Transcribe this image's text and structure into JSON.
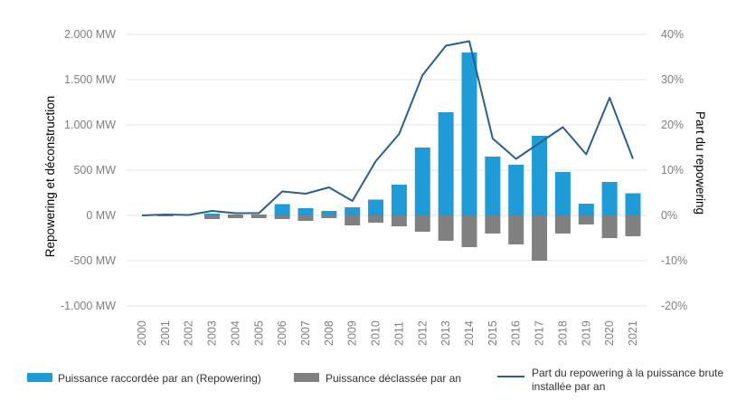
{
  "chart_data": {
    "type": "bar",
    "categories": [
      "2000",
      "2001",
      "2002",
      "2003",
      "2004",
      "2005",
      "2006",
      "2007",
      "2008",
      "2009",
      "2010",
      "2011",
      "2012",
      "2013",
      "2014",
      "2015",
      "2016",
      "2017",
      "2018",
      "2019",
      "2020",
      "2021"
    ],
    "series": [
      {
        "name": "Puissance raccordée par an (Repowering)",
        "type": "bar",
        "axis": "left",
        "color": "#1f9bd7",
        "values": [
          0,
          0,
          0,
          20,
          10,
          10,
          125,
          80,
          50,
          90,
          175,
          340,
          750,
          1140,
          1800,
          650,
          560,
          880,
          480,
          130,
          370,
          245
        ]
      },
      {
        "name": "Puissance déclassée par an",
        "type": "bar",
        "axis": "left",
        "color": "#808080",
        "values": [
          0,
          -10,
          0,
          -40,
          -30,
          -30,
          -40,
          -60,
          -30,
          -110,
          -80,
          -120,
          -180,
          -280,
          -350,
          -200,
          -320,
          -500,
          -200,
          -100,
          -250,
          -230
        ]
      },
      {
        "name": "Part du repowering à la puissance brute installée par an",
        "type": "line",
        "axis": "right",
        "color": "#2b5f8e",
        "values": [
          0,
          0.2,
          0.1,
          1,
          0.5,
          0.5,
          5.3,
          4.8,
          6.2,
          3.2,
          12,
          18,
          31,
          37.5,
          38.5,
          17,
          12.5,
          16,
          19.5,
          13.5,
          26,
          12.5
        ]
      }
    ],
    "ylabel": "Repowering et déconstruction",
    "y2label": "Part du repowering",
    "ylim": [
      -1000,
      2000
    ],
    "y2lim": [
      -20,
      40
    ],
    "yticks": [
      "-1.000 MW",
      "-500 MW",
      "0 MW",
      "500 MW",
      "1.000 MW",
      "1.500 MW",
      "2.000 MW"
    ],
    "ytick_values": [
      -1000,
      -500,
      0,
      500,
      1000,
      1500,
      2000
    ],
    "y2ticks": [
      "-20%",
      "-10%",
      "0%",
      "10%",
      "20%",
      "30%",
      "40%"
    ],
    "y2tick_values": [
      -20,
      -10,
      0,
      10,
      20,
      30,
      40
    ],
    "legend": {
      "placement": "bottom",
      "entries": [
        "Puissance raccordée par an (Repowering)",
        "Puissance déclassée par an",
        "Part du repowering à la puissance brute",
        "installée par an"
      ]
    },
    "grid": true
  }
}
